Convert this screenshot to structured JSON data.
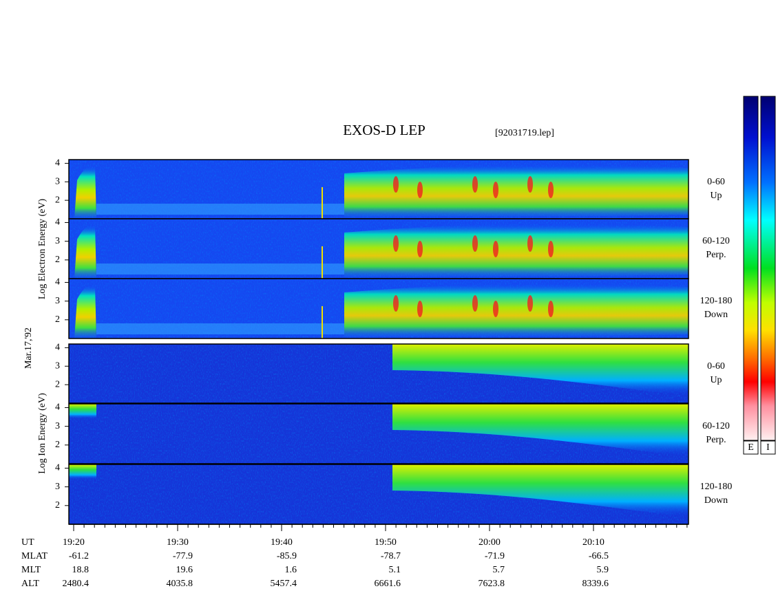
{
  "header": {
    "title": "EXOS-D LEP",
    "file": "[92031719.lep]"
  },
  "date": "Mar.17,'92",
  "electron": {
    "axis_label": "Log Electron Energy (eV)",
    "panels": [
      {
        "label_lines": [
          "0-60",
          "Up"
        ],
        "ylim": [
          1,
          4.2
        ],
        "yticks": [
          2,
          3,
          4
        ]
      },
      {
        "label_lines": [
          "60-120",
          "Perp."
        ],
        "ylim": [
          1,
          4.2
        ],
        "yticks": [
          2,
          3,
          4
        ]
      },
      {
        "label_lines": [
          "120-180",
          "Down"
        ],
        "ylim": [
          1,
          4.2
        ],
        "yticks": [
          2,
          3,
          4
        ]
      }
    ]
  },
  "ion": {
    "axis_label": "Log Ion Energy (eV)",
    "panels": [
      {
        "label_lines": [
          "0-60",
          "Up"
        ],
        "ylim": [
          1,
          4.2
        ],
        "yticks": [
          2,
          3,
          4
        ]
      },
      {
        "label_lines": [
          "60-120",
          "Perp."
        ],
        "ylim": [
          1,
          4.2
        ],
        "yticks": [
          2,
          3,
          4
        ]
      },
      {
        "label_lines": [
          "120-180",
          "Down"
        ],
        "ylim": [
          1,
          4.2
        ],
        "yticks": [
          2,
          3,
          4
        ]
      }
    ]
  },
  "time_axis": {
    "rows": [
      {
        "label": "UT",
        "values": [
          "19:20",
          "19:30",
          "19:40",
          "19:50",
          "20:00",
          "20:10"
        ]
      },
      {
        "label": "MLAT",
        "values": [
          -61.2,
          -77.9,
          -85.9,
          -78.7,
          -71.9,
          -66.5
        ]
      },
      {
        "label": "MLT",
        "values": [
          18.8,
          19.6,
          1.6,
          5.1,
          5.7,
          5.9
        ]
      },
      {
        "label": "ALT",
        "values": [
          2480.4,
          4035.8,
          5457.4,
          6661.6,
          7623.8,
          8339.6
        ]
      }
    ]
  },
  "colorbars": [
    {
      "label": "E"
    },
    {
      "label": "I"
    }
  ]
}
